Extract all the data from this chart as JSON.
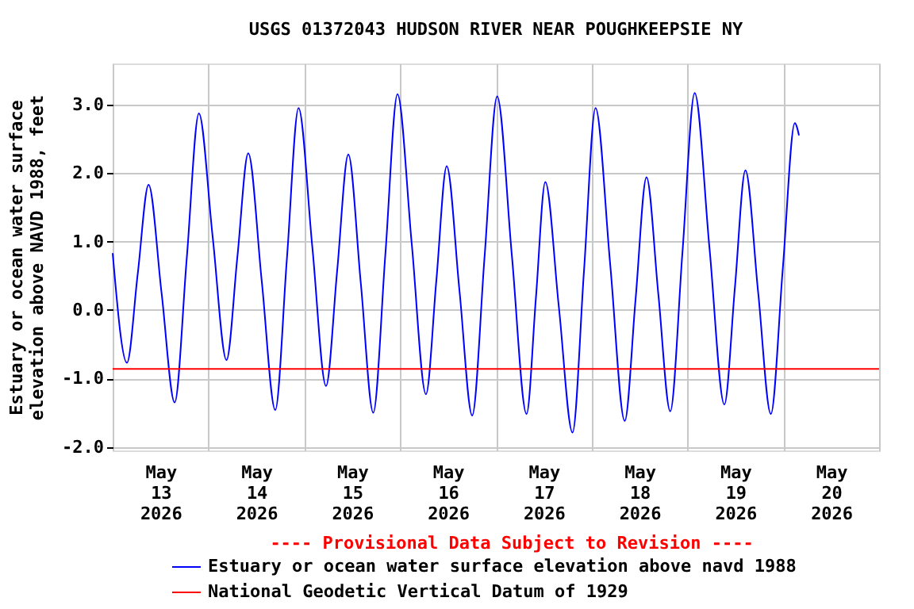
{
  "chart_data": {
    "type": "line",
    "title": "USGS 01372043 HUDSON RIVER NEAR POUGHKEEPSIE NY",
    "ylabel": "Estuary or ocean water surface\nelevation above NAVD 1988, feet",
    "annotations": [
      "---- Provisional Data Subject to Revision ----"
    ],
    "x": [
      "2026-05-13T00:00",
      "2026-05-13T03:35",
      "2026-05-13T06:17",
      "2026-05-13T09:00",
      "2026-05-13T12:16",
      "2026-05-13T15:32",
      "2026-05-13T18:34",
      "2026-05-13T21:36",
      "2026-05-14T01:03",
      "2026-05-14T04:31",
      "2026-05-14T07:15",
      "2026-05-14T09:58",
      "2026-05-14T13:21",
      "2026-05-14T16:44",
      "2026-05-14T19:39",
      "2026-05-14T22:34",
      "2026-05-15T02:01",
      "2026-05-15T05:27",
      "2026-05-15T08:15",
      "2026-05-15T11:02",
      "2026-05-15T14:10",
      "2026-05-15T17:17",
      "2026-05-15T20:20",
      "2026-05-15T23:21",
      "2026-05-16T02:56",
      "2026-05-16T06:29",
      "2026-05-16T09:06",
      "2026-05-16T11:41",
      "2026-05-16T14:53",
      "2026-05-16T18:04",
      "2026-05-16T21:11",
      "2026-05-17T00:19",
      "2026-05-17T04:00",
      "2026-05-17T07:41",
      "2026-05-17T10:02",
      "2026-05-17T12:23",
      "2026-05-17T15:47",
      "2026-05-17T19:12",
      "2026-05-17T22:05",
      "2026-05-18T00:58",
      "2026-05-18T04:38",
      "2026-05-18T08:17",
      "2026-05-18T11:00",
      "2026-05-18T13:44",
      "2026-05-18T16:42",
      "2026-05-18T19:41",
      "2026-05-18T22:45",
      "2026-05-19T01:48",
      "2026-05-19T05:31",
      "2026-05-19T09:14",
      "2026-05-19T11:53",
      "2026-05-19T14:31",
      "2026-05-19T17:42",
      "2026-05-19T20:53",
      "2026-05-19T23:53",
      "2026-05-20T02:53",
      "2026-05-20T03:56"
    ],
    "series": [
      {
        "name": "Estuary or ocean water surface elevation above navd 1988",
        "color": "#0000ff",
        "values": [
          0.83,
          -0.77,
          0.53,
          1.83,
          0.24,
          -1.35,
          0.76,
          2.87,
          1.07,
          -0.73,
          0.78,
          2.29,
          0.42,
          -1.46,
          0.75,
          2.95,
          0.92,
          -1.11,
          0.58,
          2.27,
          0.39,
          -1.5,
          0.83,
          3.15,
          0.96,
          -1.23,
          0.44,
          2.1,
          0.28,
          -1.54,
          0.79,
          3.12,
          0.8,
          -1.52,
          0.18,
          1.87,
          0.04,
          -1.79,
          0.58,
          2.95,
          0.67,
          -1.62,
          0.16,
          1.94,
          0.23,
          -1.48,
          0.85,
          3.17,
          0.9,
          -1.38,
          0.33,
          2.04,
          0.26,
          -1.52,
          0.61,
          2.73,
          2.55
        ]
      }
    ],
    "ref_lines": [
      {
        "axis": "y",
        "value": -0.86,
        "label": "National Geodetic Vertical Datum of 1929",
        "color": "#ff0000"
      }
    ],
    "xlim": [
      "2026-05-13T00:00",
      "2026-05-21T00:00"
    ],
    "xticks": [
      {
        "value": "2026-05-13T00:00",
        "label": null
      },
      {
        "value": "2026-05-13T12:00",
        "label": "May\n13\n2026"
      },
      {
        "value": "2026-05-14T00:00",
        "label": null
      },
      {
        "value": "2026-05-14T12:00",
        "label": "May\n14\n2026"
      },
      {
        "value": "2026-05-15T00:00",
        "label": null
      },
      {
        "value": "2026-05-15T12:00",
        "label": "May\n15\n2026"
      },
      {
        "value": "2026-05-16T00:00",
        "label": null
      },
      {
        "value": "2026-05-16T12:00",
        "label": "May\n16\n2026"
      },
      {
        "value": "2026-05-17T00:00",
        "label": null
      },
      {
        "value": "2026-05-17T12:00",
        "label": "May\n17\n2026"
      },
      {
        "value": "2026-05-18T00:00",
        "label": null
      },
      {
        "value": "2026-05-18T12:00",
        "label": "May\n18\n2026"
      },
      {
        "value": "2026-05-19T00:00",
        "label": null
      },
      {
        "value": "2026-05-19T12:00",
        "label": "May\n19\n2026"
      },
      {
        "value": "2026-05-20T00:00",
        "label": null
      },
      {
        "value": "2026-05-20T12:00",
        "label": "May\n20\n2026"
      },
      {
        "value": "2026-05-21T00:00",
        "label": null
      }
    ],
    "ylim": [
      -2.05,
      3.6
    ],
    "yticks": [
      {
        "value": -2,
        "label": "-2.0"
      },
      {
        "value": -1,
        "label": "-1.0"
      },
      {
        "value": 0,
        "label": "0.0"
      },
      {
        "value": 1,
        "label": "1.0"
      },
      {
        "value": 2,
        "label": "2.0"
      },
      {
        "value": 3,
        "label": "3.0"
      }
    ],
    "grid": true,
    "legend": "bottom",
    "marker": "none",
    "line_style": "solid"
  }
}
